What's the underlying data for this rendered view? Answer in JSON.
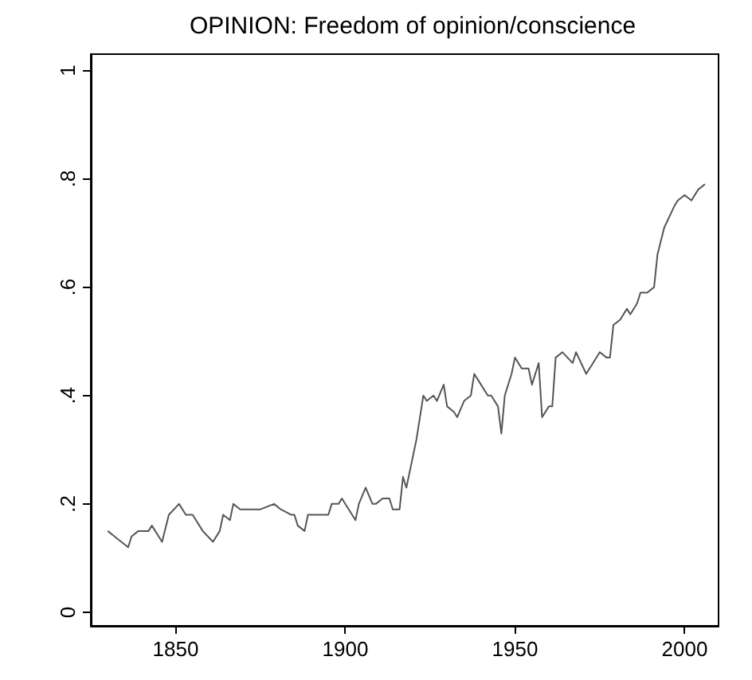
{
  "chart_data": {
    "type": "line",
    "title": "OPINION: Freedom of opinion/conscience",
    "x": [
      1830,
      1832,
      1834,
      1836,
      1837,
      1839,
      1842,
      1843,
      1846,
      1848,
      1851,
      1853,
      1855,
      1858,
      1861,
      1863,
      1864,
      1866,
      1867,
      1869,
      1872,
      1875,
      1879,
      1881,
      1884,
      1885,
      1886,
      1888,
      1889,
      1895,
      1896,
      1898,
      1899,
      1903,
      1904,
      1906,
      1908,
      1909,
      1911,
      1913,
      1914,
      1916,
      1917,
      1918,
      1920,
      1921,
      1923,
      1924,
      1926,
      1927,
      1929,
      1930,
      1932,
      1933,
      1935,
      1937,
      1938,
      1940,
      1942,
      1943,
      1945,
      1946,
      1947,
      1949,
      1950,
      1952,
      1954,
      1955,
      1957,
      1958,
      1960,
      1961,
      1962,
      1964,
      1967,
      1968,
      1971,
      1973,
      1975,
      1977,
      1978,
      1979,
      1981,
      1983,
      1984,
      1986,
      1987,
      1989,
      1991,
      1992,
      1994,
      1997,
      1998,
      2000,
      2002,
      2004,
      2006
    ],
    "series": [
      {
        "color": "#555555",
        "values": [
          0.15,
          0.14,
          0.13,
          0.12,
          0.14,
          0.15,
          0.15,
          0.16,
          0.13,
          0.18,
          0.2,
          0.18,
          0.18,
          0.15,
          0.13,
          0.15,
          0.18,
          0.17,
          0.2,
          0.19,
          0.19,
          0.19,
          0.2,
          0.19,
          0.18,
          0.18,
          0.16,
          0.15,
          0.18,
          0.18,
          0.2,
          0.2,
          0.21,
          0.17,
          0.2,
          0.23,
          0.2,
          0.2,
          0.21,
          0.21,
          0.19,
          0.19,
          0.25,
          0.23,
          0.29,
          0.32,
          0.4,
          0.39,
          0.4,
          0.39,
          0.42,
          0.38,
          0.37,
          0.36,
          0.39,
          0.4,
          0.44,
          0.42,
          0.4,
          0.4,
          0.38,
          0.33,
          0.4,
          0.44,
          0.47,
          0.45,
          0.45,
          0.42,
          0.46,
          0.36,
          0.38,
          0.38,
          0.47,
          0.48,
          0.46,
          0.48,
          0.44,
          0.46,
          0.48,
          0.47,
          0.47,
          0.53,
          0.54,
          0.56,
          0.55,
          0.57,
          0.59,
          0.59,
          0.6,
          0.66,
          0.71,
          0.75,
          0.76,
          0.77,
          0.76,
          0.78,
          0.79
        ]
      }
    ],
    "xlim": [
      1825,
      2010
    ],
    "xticks": [
      1850,
      1900,
      1950,
      2000
    ],
    "ylim": [
      -0.025,
      1.03
    ],
    "yticks": [
      0,
      {
        "value": 0.2,
        "label": ".2"
      },
      {
        "value": 0.4,
        "label": ".4"
      },
      {
        "value": 0.6,
        "label": ".6"
      },
      {
        "value": 0.8,
        "label": ".8"
      },
      {
        "value": 1,
        "label": "1"
      }
    ],
    "grid": false,
    "marker": "none",
    "line_style": "solid"
  }
}
